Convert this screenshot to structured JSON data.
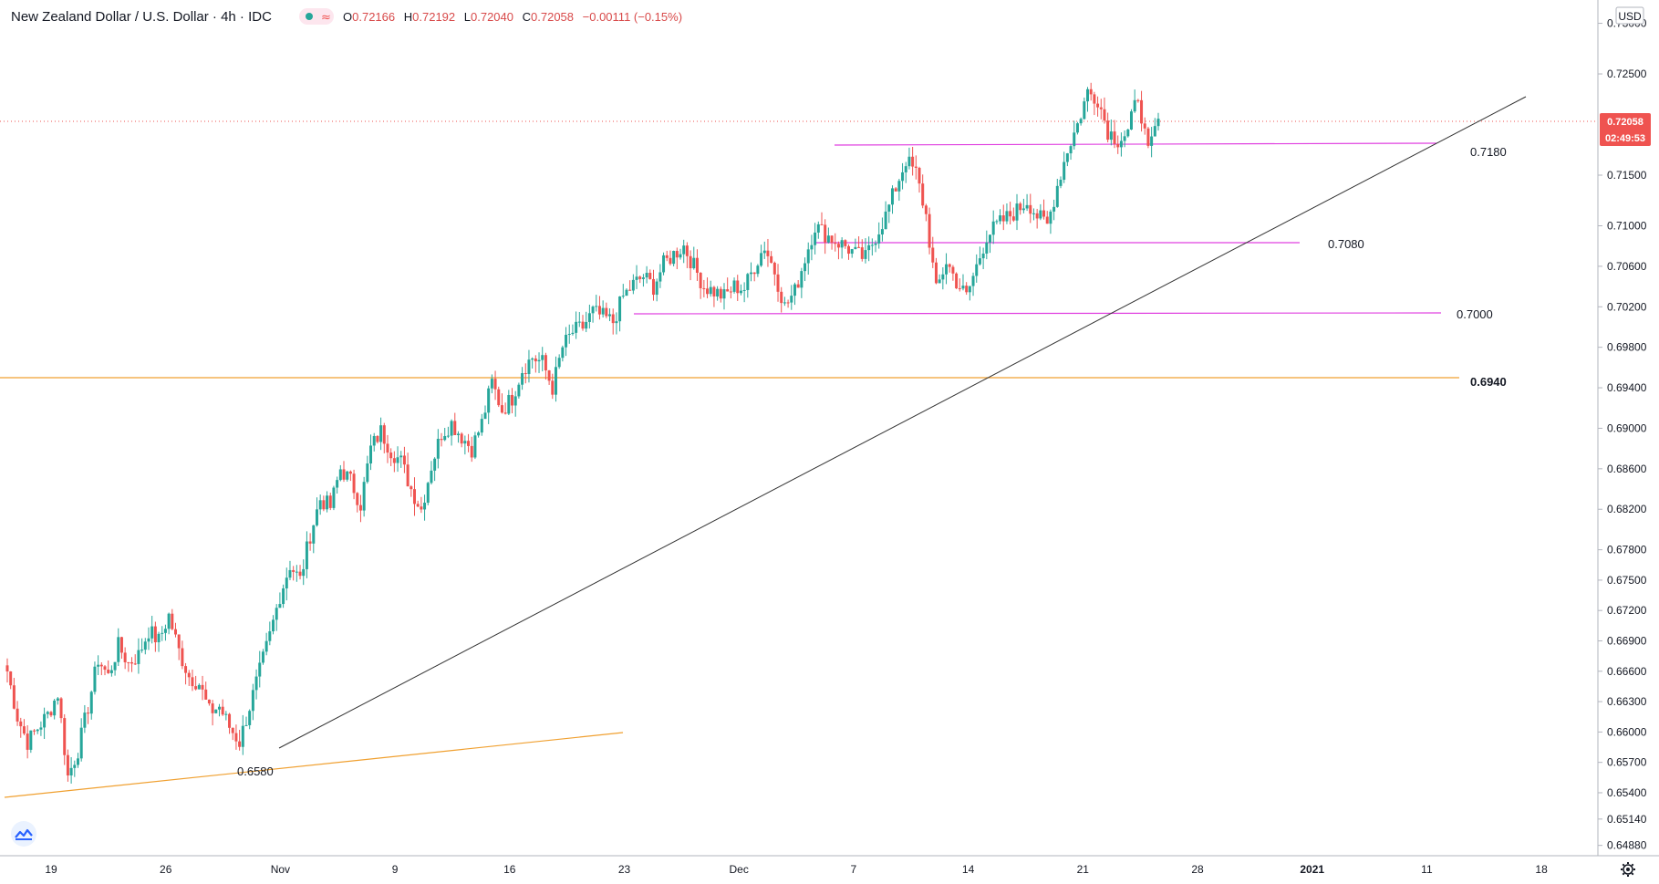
{
  "header": {
    "symbol_title": "New Zealand Dollar / U.S. Dollar · 4h · IDC",
    "ohlc": {
      "o_label": "O",
      "o": "0.72166",
      "h_label": "H",
      "h": "0.72192",
      "l_label": "L",
      "l": "0.72040",
      "c_label": "C",
      "c": "0.72058",
      "change": "−0.00111 (−0.15%)"
    }
  },
  "price_axis": {
    "currency": "USD",
    "last_price": "0.72058",
    "countdown": "02:49:53"
  },
  "colors": {
    "up": "#26a69a",
    "down": "#ef5350",
    "support": "#f0a030",
    "resistance": "#e040e0",
    "trendline": "#333333",
    "badge": "#ef5350"
  },
  "chart_data": {
    "type": "candlestick",
    "timeframe": "4h",
    "x_ticks": [
      "19",
      "26",
      "Nov",
      "9",
      "16",
      "23",
      "Dec",
      "7",
      "14",
      "21",
      "28",
      "2021",
      "11",
      "18"
    ],
    "y_ticks": [
      "0.73000",
      "0.72500",
      "0.72058",
      "0.71500",
      "0.71000",
      "0.70600",
      "0.70200",
      "0.69800",
      "0.69400",
      "0.69000",
      "0.68600",
      "0.68200",
      "0.67800",
      "0.67500",
      "0.67200",
      "0.66900",
      "0.66600",
      "0.66300",
      "0.66000",
      "0.65700",
      "0.65400",
      "0.65140",
      "0.64880"
    ],
    "ylim": [
      0.6485,
      0.7305
    ],
    "levels": [
      {
        "label": "0.7180",
        "value": 0.718
      },
      {
        "label": "0.7080",
        "value": 0.708
      },
      {
        "label": "0.7000",
        "value": 0.7
      },
      {
        "label": "0.6940",
        "value": 0.694
      },
      {
        "label": "0.6580",
        "value": 0.658
      }
    ],
    "last_close": 0.72058,
    "series_close": [
      0.666,
      0.6615,
      0.659,
      0.6604,
      0.6617,
      0.6638,
      0.6556,
      0.6582,
      0.6625,
      0.6672,
      0.6655,
      0.6685,
      0.6668,
      0.6676,
      0.67,
      0.669,
      0.6715,
      0.668,
      0.6655,
      0.6648,
      0.662,
      0.6625,
      0.6605,
      0.659,
      0.6625,
      0.666,
      0.6695,
      0.6735,
      0.6765,
      0.675,
      0.6795,
      0.683,
      0.6822,
      0.686,
      0.6848,
      0.6825,
      0.688,
      0.6897,
      0.6878,
      0.6867,
      0.684,
      0.682,
      0.6863,
      0.6895,
      0.6905,
      0.6892,
      0.688,
      0.6905,
      0.6945,
      0.6918,
      0.693,
      0.6958,
      0.697,
      0.6965,
      0.694,
      0.698,
      0.6995,
      0.7,
      0.7015,
      0.701,
      0.7005,
      0.703,
      0.7042,
      0.705,
      0.704,
      0.7062,
      0.7072,
      0.708,
      0.706,
      0.704,
      0.7035,
      0.703,
      0.704,
      0.7038,
      0.706,
      0.708,
      0.7055,
      0.702,
      0.7035,
      0.7068,
      0.71,
      0.7092,
      0.7085,
      0.708,
      0.7072,
      0.7068,
      0.709,
      0.711,
      0.7138,
      0.7165,
      0.7152,
      0.711,
      0.7035,
      0.7065,
      0.7045,
      0.703,
      0.706,
      0.709,
      0.71,
      0.7108,
      0.7115,
      0.7125,
      0.711,
      0.71,
      0.714,
      0.7175,
      0.72,
      0.7232,
      0.7226,
      0.7194,
      0.7185,
      0.7192,
      0.723,
      0.717,
      0.7206
    ]
  }
}
